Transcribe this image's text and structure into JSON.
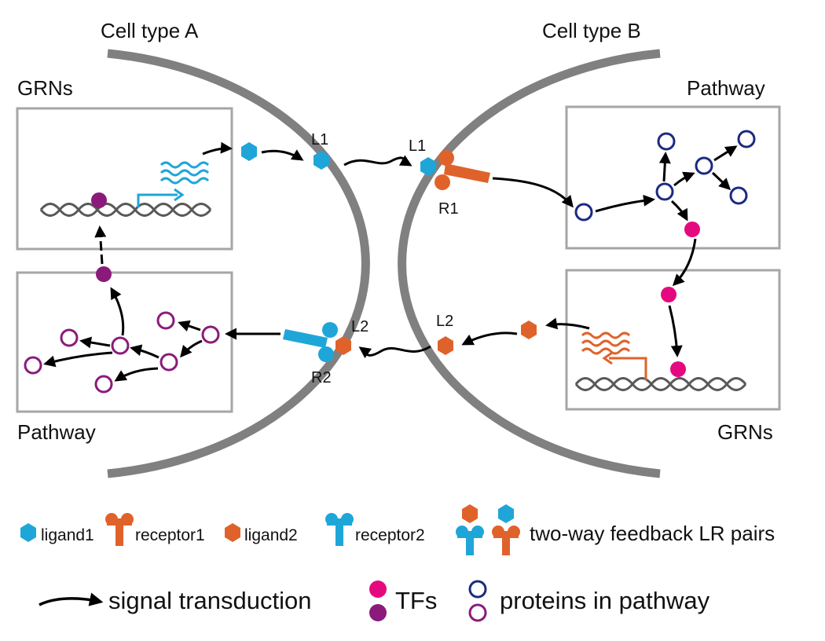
{
  "cells": {
    "a": {
      "title": "Cell type A",
      "grn_label": "GRNs",
      "pathway_label": "Pathway"
    },
    "b": {
      "title": "Cell type B",
      "grn_label": "GRNs",
      "pathway_label": "Pathway"
    }
  },
  "signal_labels": {
    "l1_free": "L1",
    "l1_bound": "L1",
    "r1": "R1",
    "l2_free": "L2",
    "l2_bound": "L2",
    "r2": "R2"
  },
  "legend": {
    "ligand1": "ligand1",
    "receptor1": "receptor1",
    "ligand2": "ligand2",
    "receptor2": "receptor2",
    "feedback": "two-way feedback LR pairs",
    "signal": "signal transduction",
    "tfs": "TFs",
    "proteins": "proteins in pathway"
  },
  "colors": {
    "membrane": "#808080",
    "box_border": "#a6a6a6",
    "dna": "#595959",
    "ligand1_receptor2": "#1fa6d9",
    "ligand2_receptor1": "#e0622b",
    "tf_b": "#e5097f",
    "tf_a": "#8a1b7a",
    "protein_b": "#1b2a80",
    "protein_a": "#8a1b7a",
    "arrow": "#000000"
  },
  "icons": {
    "ligand1": "hexagon",
    "ligand2": "hexagon",
    "receptor1": "y-receptor",
    "receptor2": "y-receptor",
    "tf": "filled-circle",
    "protein": "open-circle",
    "mrna": "wavy-lines",
    "dna": "double-helix"
  }
}
